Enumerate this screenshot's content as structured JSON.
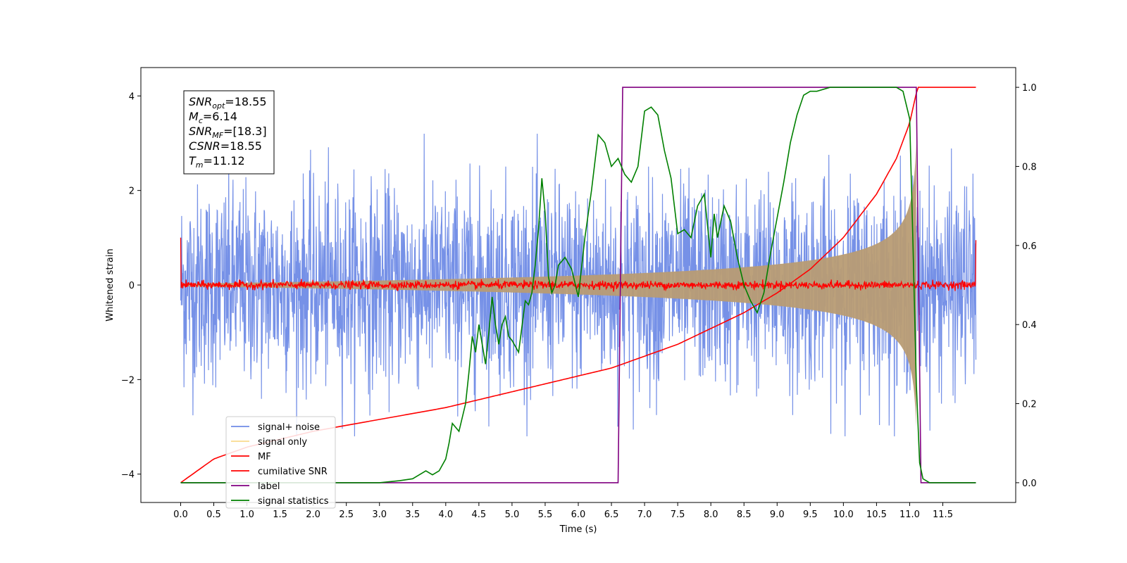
{
  "chart_data": {
    "type": "line",
    "xlabel": "Time (s)",
    "ylabel": "Whitened strain",
    "xlim": [
      -0.6,
      12.6
    ],
    "ylim_left": [
      -4.6,
      4.6
    ],
    "ylim_right": [
      -0.05,
      1.05
    ],
    "x_ticks": [
      "0.0",
      "0.5",
      "1.0",
      "1.5",
      "2.0",
      "2.5",
      "3.0",
      "3.5",
      "4.0",
      "4.5",
      "5.0",
      "5.5",
      "6.0",
      "6.5",
      "7.0",
      "7.5",
      "8.0",
      "8.5",
      "9.0",
      "9.5",
      "10.0",
      "10.5",
      "11.0",
      "11.5"
    ],
    "y_ticks_left": [
      "−4",
      "−2",
      "0",
      "2",
      "4"
    ],
    "y_ticks_right": [
      "0.0",
      "0.2",
      "0.4",
      "0.6",
      "0.8",
      "1.0"
    ],
    "grid": false,
    "legend_position": "lower-left",
    "stats_box": [
      {
        "sym": "SNR",
        "sub": "opt",
        "value": "=18.55"
      },
      {
        "sym": "M",
        "sub": "c",
        "value": "=6.14"
      },
      {
        "sym": "SNR",
        "sub": "MF",
        "value": "=[18.3]"
      },
      {
        "sym": "CSNR",
        "sub": "",
        "value": "=18.55"
      },
      {
        "sym": "T",
        "sub": "m",
        "value": "=11.12"
      }
    ],
    "series": [
      {
        "name": "signal+ noise",
        "color": "#6f8be6",
        "axis": "left",
        "x_range": [
          0,
          12.0
        ],
        "envelope": [
          2.8,
          3.2
        ]
      },
      {
        "name": "signal only",
        "color": "#f5c242",
        "axis": "left",
        "chirp_end": 11.12,
        "amplitude_start": 0.03,
        "amplitude_end": 2.4
      },
      {
        "name": "MF",
        "color": "#ff0000",
        "axis": "left",
        "baseline": 0.0,
        "noise": 0.06,
        "edge_values": [
          1.0,
          0.95
        ]
      },
      {
        "name": "cumilative SNR",
        "color": "#ff0000",
        "axis": "right",
        "x": [
          0,
          0.5,
          1.0,
          2.0,
          3.0,
          4.0,
          5.0,
          6.0,
          6.5,
          7.0,
          7.5,
          8.0,
          8.5,
          9.0,
          9.5,
          10.0,
          10.5,
          10.8,
          11.0,
          11.12,
          12.0
        ],
        "y": [
          0.0,
          0.06,
          0.09,
          0.13,
          0.16,
          0.19,
          0.23,
          0.27,
          0.29,
          0.32,
          0.35,
          0.39,
          0.43,
          0.48,
          0.54,
          0.62,
          0.73,
          0.82,
          0.91,
          1.0,
          1.0
        ]
      },
      {
        "name": "label",
        "color": "#800080",
        "axis": "right",
        "x": [
          0,
          6.6,
          6.67,
          11.1,
          11.17,
          12.0
        ],
        "y": [
          0.0,
          0.0,
          1.0,
          1.0,
          0.0,
          0.0
        ]
      },
      {
        "name": "signal statistics",
        "color": "#008000",
        "axis": "right",
        "x": [
          0,
          1.0,
          2.0,
          2.5,
          3.0,
          3.3,
          3.5,
          3.6,
          3.7,
          3.8,
          3.9,
          4.0,
          4.05,
          4.1,
          4.2,
          4.3,
          4.35,
          4.4,
          4.45,
          4.5,
          4.55,
          4.6,
          4.65,
          4.7,
          4.75,
          4.8,
          4.85,
          4.9,
          4.95,
          5.0,
          5.1,
          5.2,
          5.25,
          5.3,
          5.35,
          5.4,
          5.45,
          5.5,
          5.55,
          5.6,
          5.65,
          5.7,
          5.8,
          5.9,
          6.0,
          6.1,
          6.2,
          6.3,
          6.4,
          6.5,
          6.6,
          6.7,
          6.8,
          6.9,
          7.0,
          7.1,
          7.2,
          7.3,
          7.4,
          7.5,
          7.6,
          7.7,
          7.8,
          7.9,
          8.0,
          8.05,
          8.1,
          8.2,
          8.3,
          8.4,
          8.5,
          8.6,
          8.7,
          8.8,
          8.9,
          9.0,
          9.1,
          9.2,
          9.3,
          9.4,
          9.5,
          9.6,
          9.8,
          10.0,
          10.5,
          10.8,
          10.9,
          11.0,
          11.05,
          11.1,
          11.15,
          11.2,
          11.3,
          12.0
        ],
        "y": [
          0.0,
          0.0,
          0.0,
          0.0,
          0.0,
          0.005,
          0.01,
          0.02,
          0.03,
          0.02,
          0.03,
          0.06,
          0.1,
          0.15,
          0.13,
          0.2,
          0.28,
          0.37,
          0.33,
          0.4,
          0.35,
          0.3,
          0.38,
          0.47,
          0.4,
          0.35,
          0.4,
          0.42,
          0.37,
          0.36,
          0.33,
          0.46,
          0.45,
          0.48,
          0.55,
          0.64,
          0.77,
          0.68,
          0.52,
          0.48,
          0.5,
          0.55,
          0.57,
          0.54,
          0.47,
          0.62,
          0.74,
          0.88,
          0.86,
          0.8,
          0.82,
          0.78,
          0.76,
          0.8,
          0.94,
          0.95,
          0.93,
          0.84,
          0.77,
          0.63,
          0.64,
          0.62,
          0.7,
          0.73,
          0.57,
          0.68,
          0.62,
          0.7,
          0.66,
          0.57,
          0.5,
          0.46,
          0.43,
          0.48,
          0.58,
          0.67,
          0.76,
          0.86,
          0.93,
          0.98,
          0.99,
          0.99,
          1.0,
          1.0,
          1.0,
          1.0,
          0.99,
          0.92,
          0.6,
          0.25,
          0.05,
          0.01,
          0.0,
          0.0
        ]
      }
    ]
  }
}
